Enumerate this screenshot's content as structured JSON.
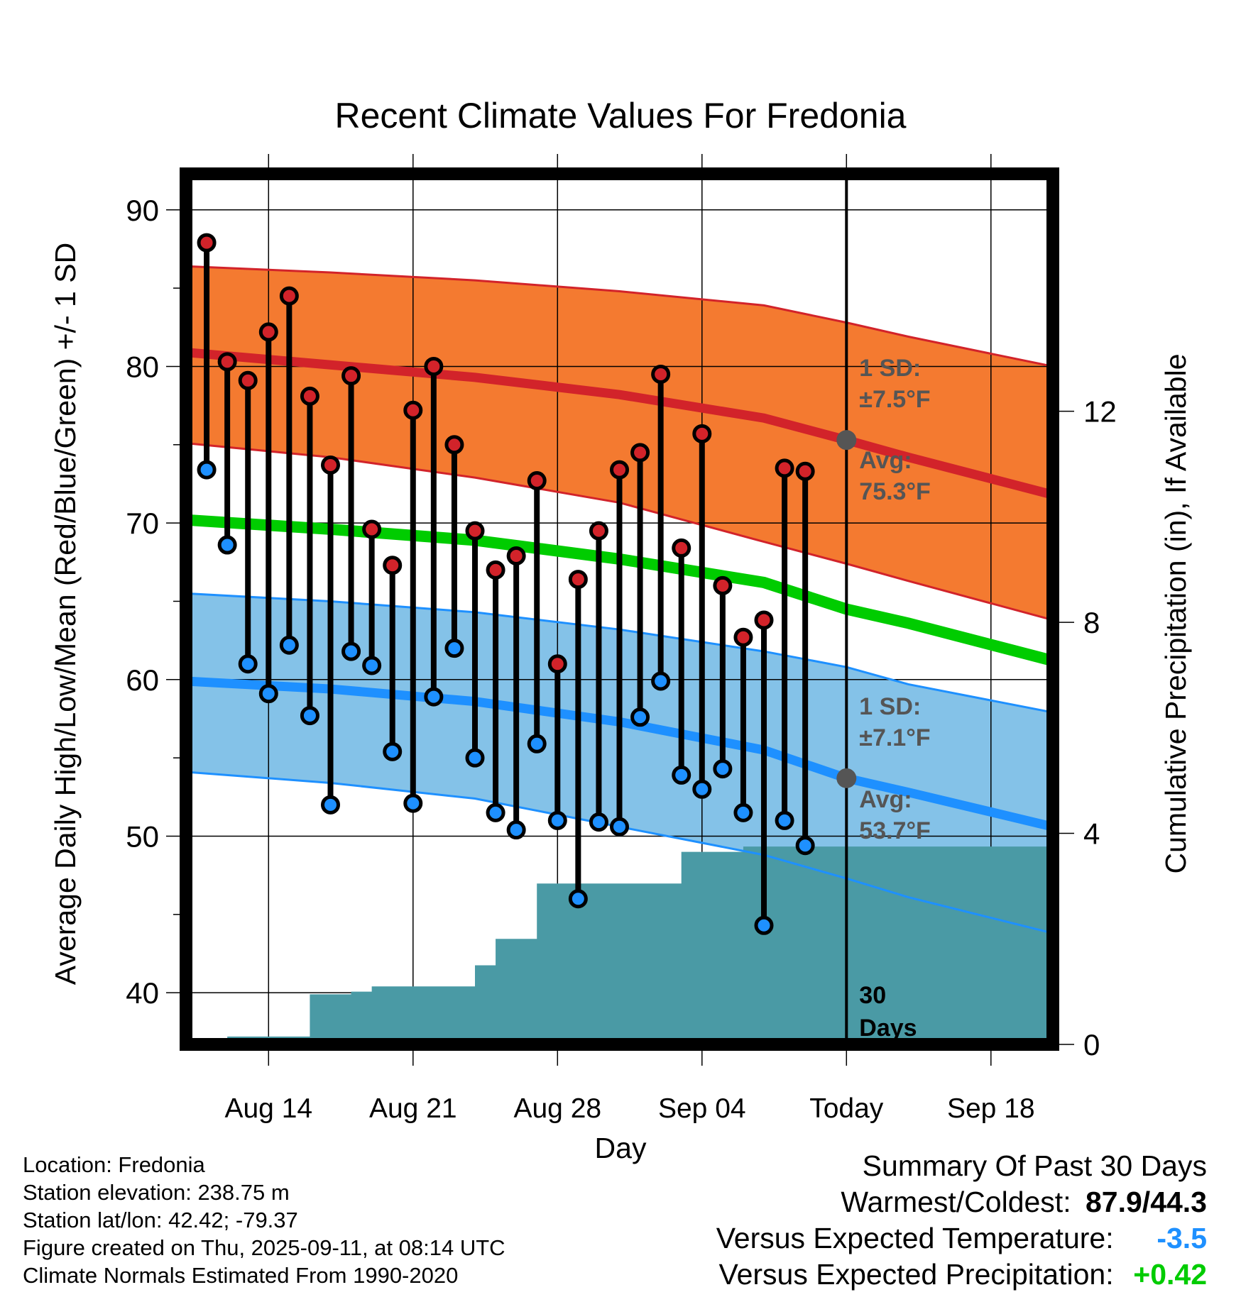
{
  "chart_data": {
    "type": "line",
    "title": "Recent Climate Values For Fredonia",
    "xlabel": "Day",
    "ylabel": "Average Daily High/Low/Mean (Red/Blue/Green) +/- 1 SD",
    "y2label": "Cumulative Precipitation (in), If Available",
    "x_start": "2025-08-10",
    "x_end": "2025-09-21",
    "x_ticks": [
      {
        "date": "2025-08-14",
        "label": "Aug 14"
      },
      {
        "date": "2025-08-21",
        "label": "Aug 21"
      },
      {
        "date": "2025-08-28",
        "label": "Aug 28"
      },
      {
        "date": "2025-09-04",
        "label": "Sep 04"
      },
      {
        "date": "2025-09-11",
        "label": "Today"
      },
      {
        "date": "2025-09-18",
        "label": "Sep 18"
      }
    ],
    "ylim": [
      36.7,
      92.3
    ],
    "y_ticks": [
      40,
      50,
      60,
      70,
      80,
      90
    ],
    "y2lim": [
      0,
      16.5
    ],
    "y2_ticks": [
      0,
      4,
      8,
      12
    ],
    "grid": true,
    "today": "2025-09-11",
    "observations": {
      "dates": [
        "2025-08-11",
        "2025-08-12",
        "2025-08-13",
        "2025-08-14",
        "2025-08-15",
        "2025-08-16",
        "2025-08-17",
        "2025-08-18",
        "2025-08-19",
        "2025-08-20",
        "2025-08-21",
        "2025-08-22",
        "2025-08-23",
        "2025-08-24",
        "2025-08-25",
        "2025-08-26",
        "2025-08-27",
        "2025-08-28",
        "2025-08-29",
        "2025-08-30",
        "2025-08-31",
        "2025-09-01",
        "2025-09-02",
        "2025-09-03",
        "2025-09-04",
        "2025-09-05",
        "2025-09-06",
        "2025-09-07",
        "2025-09-08",
        "2025-09-09",
        "2025-09-10"
      ],
      "high": [
        87.9,
        80.3,
        79.1,
        82.2,
        84.5,
        78.1,
        73.7,
        79.4,
        69.6,
        67.3,
        77.2,
        80.0,
        75.0,
        69.5,
        67.0,
        67.9,
        72.7,
        61.0,
        66.4,
        69.5,
        73.4,
        74.5,
        79.5,
        68.4,
        75.7,
        66.0,
        62.7,
        63.8,
        73.5,
        73.3,
        null
      ],
      "low": [
        73.4,
        68.6,
        61.0,
        59.1,
        62.2,
        57.7,
        52.0,
        61.8,
        60.9,
        55.4,
        52.1,
        58.9,
        62.0,
        55.0,
        51.5,
        50.4,
        55.9,
        51.0,
        46.0,
        50.9,
        50.6,
        57.6,
        59.9,
        53.9,
        53.0,
        54.3,
        51.5,
        44.3,
        51.0,
        49.4,
        null
      ]
    },
    "normals": {
      "dates": [
        "2025-08-10",
        "2025-08-17",
        "2025-08-24",
        "2025-08-31",
        "2025-09-07",
        "2025-09-11",
        "2025-09-14",
        "2025-09-21"
      ],
      "high_avg": [
        80.9,
        80.1,
        79.3,
        78.2,
        76.7,
        75.3,
        74.2,
        71.8
      ],
      "high_upper": [
        86.4,
        86.0,
        85.5,
        84.8,
        83.9,
        82.8,
        81.9,
        80.0
      ],
      "high_lower": [
        75.1,
        74.2,
        72.9,
        71.3,
        68.8,
        67.4,
        66.3,
        63.8
      ],
      "mean_avg": [
        70.2,
        69.6,
        68.9,
        67.7,
        66.2,
        64.5,
        63.6,
        61.2
      ],
      "low_avg": [
        59.9,
        59.4,
        58.6,
        57.3,
        55.5,
        53.7,
        52.8,
        50.6
      ],
      "low_upper": [
        65.5,
        65.0,
        64.3,
        63.2,
        61.8,
        60.8,
        59.7,
        57.9
      ],
      "low_lower": [
        54.1,
        53.4,
        52.4,
        50.6,
        48.8,
        47.3,
        46.1,
        43.8
      ]
    },
    "precipitation": {
      "dates": [
        "2025-08-11",
        "2025-08-12",
        "2025-08-13",
        "2025-08-14",
        "2025-08-15",
        "2025-08-16",
        "2025-08-17",
        "2025-08-18",
        "2025-08-19",
        "2025-08-20",
        "2025-08-21",
        "2025-08-22",
        "2025-08-23",
        "2025-08-24",
        "2025-08-25",
        "2025-08-26",
        "2025-08-27",
        "2025-08-28",
        "2025-08-29",
        "2025-08-30",
        "2025-08-31",
        "2025-09-01",
        "2025-09-02",
        "2025-09-03",
        "2025-09-04",
        "2025-09-05",
        "2025-09-06",
        "2025-09-07",
        "2025-09-08",
        "2025-09-21"
      ],
      "cumulative": [
        0.0,
        0.15,
        0.15,
        0.15,
        0.15,
        0.95,
        0.95,
        1.0,
        1.1,
        1.1,
        1.1,
        1.1,
        1.1,
        1.5,
        2.0,
        2.0,
        3.05,
        3.05,
        3.05,
        3.05,
        3.05,
        3.05,
        3.05,
        3.65,
        3.65,
        3.65,
        3.75,
        3.75,
        3.75,
        3.75
      ]
    },
    "annotations": {
      "high_sd_label": "1 SD:",
      "high_sd_value": "±7.5°F",
      "high_avg_label": "Avg:",
      "high_avg_value": "75.3°F",
      "low_sd_label": "1 SD:",
      "low_sd_value": "±7.1°F",
      "low_avg_label": "Avg:",
      "low_avg_value": "53.7°F",
      "days_line1": "30",
      "days_line2": "Days"
    },
    "colors": {
      "high_band": "#f47a30",
      "high_line": "#d2232a",
      "mean_line": "#00cc00",
      "low_band": "#84c2e8",
      "low_line": "#1e90ff",
      "precip": "#4a9aa5",
      "high_dot": "#d2232a",
      "low_dot": "#1e90ff",
      "annotation_text": "#555555"
    }
  },
  "info": {
    "location": "Location: Fredonia",
    "elevation": "Station elevation: 238.75 m",
    "latlon": "Station lat/lon: 42.42; -79.37",
    "created": "Figure created on Thu, 2025-09-11, at 08:14 UTC",
    "normals": "Climate Normals Estimated From 1990-2020"
  },
  "summary": {
    "title": "Summary Of Past 30 Days",
    "warmest_label": "Warmest/Coldest:",
    "warmest_value": "87.9/44.3",
    "temp_label": "Versus Expected Temperature:",
    "temp_value": "-3.5",
    "temp_color": "#1e90ff",
    "precip_label": "Versus Expected Precipitation:",
    "precip_value": "+0.42",
    "precip_color": "#00cc00"
  }
}
